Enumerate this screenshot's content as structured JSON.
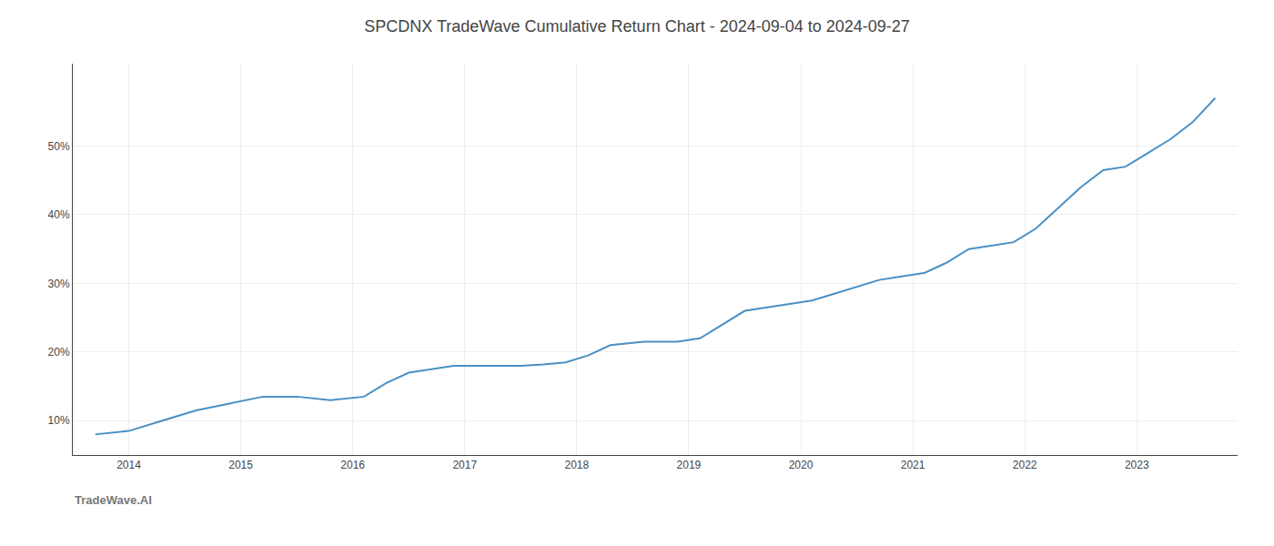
{
  "chart_data": {
    "type": "line",
    "title": "SPCDNX TradeWave Cumulative Return Chart - 2024-09-04 to 2024-09-27",
    "x": [
      2013.7,
      2014.0,
      2014.3,
      2014.6,
      2014.9,
      2015.2,
      2015.5,
      2015.8,
      2016.1,
      2016.3,
      2016.5,
      2016.7,
      2016.9,
      2017.1,
      2017.3,
      2017.5,
      2017.7,
      2017.9,
      2018.1,
      2018.3,
      2018.6,
      2018.9,
      2019.1,
      2019.3,
      2019.5,
      2019.7,
      2019.9,
      2020.1,
      2020.3,
      2020.5,
      2020.7,
      2020.9,
      2021.1,
      2021.3,
      2021.5,
      2021.7,
      2021.9,
      2022.1,
      2022.3,
      2022.5,
      2022.7,
      2022.9,
      2023.1,
      2023.3,
      2023.5,
      2023.7
    ],
    "values": [
      8.0,
      8.5,
      10.0,
      11.5,
      12.5,
      13.5,
      13.5,
      13.0,
      13.5,
      15.5,
      17.0,
      17.5,
      18.0,
      18.0,
      18.0,
      18.0,
      18.2,
      18.5,
      19.5,
      21.0,
      21.5,
      21.5,
      22.0,
      24.0,
      26.0,
      26.5,
      27.0,
      27.5,
      28.5,
      29.5,
      30.5,
      31.0,
      31.5,
      33.0,
      35.0,
      35.5,
      36.0,
      38.0,
      41.0,
      44.0,
      46.5,
      47.0,
      49.0,
      51.0,
      53.5,
      57.0
    ],
    "color": "#4a90c4",
    "xlim": [
      2013.5,
      2023.9
    ],
    "ylim": [
      5,
      62
    ],
    "xticks": [
      2014,
      2015,
      2016,
      2017,
      2018,
      2019,
      2020,
      2021,
      2022,
      2023
    ],
    "yticks": [
      {
        "value": 10,
        "label": "10%"
      },
      {
        "value": 20,
        "label": "20%"
      },
      {
        "value": 30,
        "label": "30%"
      },
      {
        "value": 40,
        "label": "40%"
      },
      {
        "value": 50,
        "label": "50%"
      }
    ],
    "grid": true,
    "annotations": [
      {
        "text": "TradeWave.AI"
      }
    ]
  }
}
